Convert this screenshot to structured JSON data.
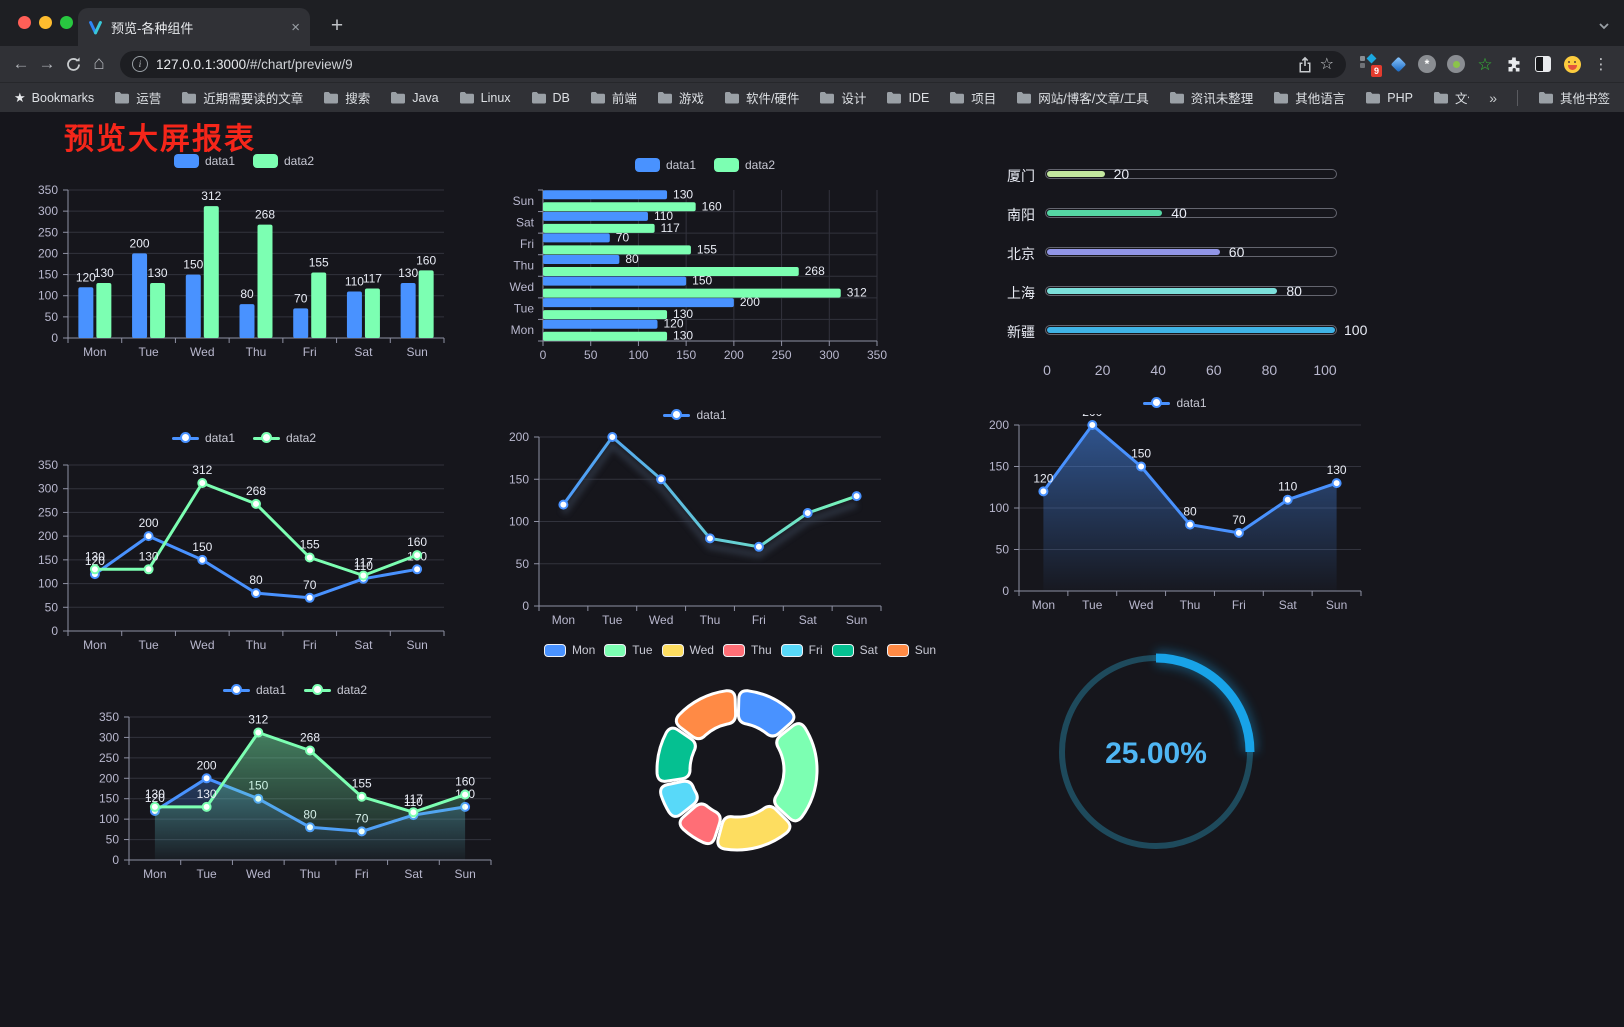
{
  "browser": {
    "tab": {
      "title": "预览-各种组件",
      "close": "×",
      "new_tab": "+"
    },
    "url": {
      "host": "127.0.0.1:3000",
      "path": "/#/chart/preview/9"
    },
    "bookmarks": {
      "bookmarks_label": "Bookmarks",
      "folders": [
        "运营",
        "近期需要读的文章",
        "搜索",
        "Java",
        "Linux",
        "DB",
        "前端",
        "游戏",
        "软件/硬件",
        "设计",
        "IDE",
        "项目",
        "网站/博客/文章/工具",
        "资讯未整理",
        "其他语言",
        "PHP",
        "文件服务器"
      ],
      "overflow": "»",
      "other_bookmarks": "其他书签"
    },
    "extensions_badge": "9"
  },
  "page": {
    "title": "预览大屏报表"
  },
  "colors": {
    "background": "#16161c",
    "series_blue": "#4992ff",
    "series_green": "#7cffb2",
    "axis_line": "#8f91a3",
    "grid_line": "#32333d",
    "tick_text": "#b9b8ce",
    "value_label": "#e9ecf5",
    "title_red": "#f5261a"
  },
  "chart_data": [
    {
      "id": "bar-grouped",
      "type": "bar",
      "categories": [
        "Mon",
        "Tue",
        "Wed",
        "Thu",
        "Fri",
        "Sat",
        "Sun"
      ],
      "series": [
        {
          "name": "data1",
          "color": "#4992ff",
          "values": [
            120,
            200,
            150,
            80,
            70,
            110,
            130
          ]
        },
        {
          "name": "data2",
          "color": "#7cffb2",
          "values": [
            130,
            130,
            312,
            268,
            155,
            117,
            160
          ]
        }
      ],
      "ylim": [
        0,
        350
      ],
      "ytick": 50
    },
    {
      "id": "bar-horizontal",
      "type": "bar-horizontal",
      "categories": [
        "Mon",
        "Tue",
        "Wed",
        "Thu",
        "Fri",
        "Sat",
        "Sun"
      ],
      "series": [
        {
          "name": "data1",
          "color": "#4992ff",
          "values": [
            120,
            200,
            150,
            80,
            70,
            110,
            130
          ]
        },
        {
          "name": "data2",
          "color": "#7cffb2",
          "values": [
            130,
            130,
            312,
            268,
            155,
            117,
            160
          ]
        }
      ],
      "xlim": [
        0,
        350
      ],
      "xtick": 50
    },
    {
      "id": "city-progress",
      "type": "progress",
      "rows": [
        {
          "label": "厦门",
          "value": 20,
          "color": "#c3e79f"
        },
        {
          "label": "南阳",
          "value": 40,
          "color": "#55d6a4"
        },
        {
          "label": "北京",
          "value": 60,
          "color": "#9195e6"
        },
        {
          "label": "上海",
          "value": 80,
          "color": "#7ce0db"
        },
        {
          "label": "新疆",
          "value": 100,
          "color": "#3fb3e6"
        }
      ],
      "xticks": [
        0,
        20,
        40,
        60,
        80,
        100
      ],
      "xlim": [
        0,
        100
      ]
    },
    {
      "id": "line-two",
      "type": "line",
      "categories": [
        "Mon",
        "Tue",
        "Wed",
        "Thu",
        "Fri",
        "Sat",
        "Sun"
      ],
      "series": [
        {
          "name": "data1",
          "color": "#4992ff",
          "values": [
            120,
            200,
            150,
            80,
            70,
            110,
            130
          ],
          "labels": true
        },
        {
          "name": "data2",
          "color": "#7cffb2",
          "values": [
            130,
            130,
            312,
            268,
            155,
            117,
            160
          ],
          "labels": true
        }
      ],
      "ylim": [
        0,
        350
      ],
      "ytick": 50
    },
    {
      "id": "line-gradient",
      "type": "line",
      "categories": [
        "Mon",
        "Tue",
        "Wed",
        "Thu",
        "Fri",
        "Sat",
        "Sun"
      ],
      "series": [
        {
          "name": "data1",
          "color": "#4992ff",
          "color_end": "#7cffb2",
          "gradient": true,
          "shadow": true,
          "values": [
            120,
            200,
            150,
            80,
            70,
            110,
            130
          ],
          "labels": false
        }
      ],
      "ylim": [
        0,
        200
      ],
      "ytick": 50
    },
    {
      "id": "area-blue",
      "type": "area",
      "categories": [
        "Mon",
        "Tue",
        "Wed",
        "Thu",
        "Fri",
        "Sat",
        "Sun"
      ],
      "series": [
        {
          "name": "data1",
          "color": "#4992ff",
          "values": [
            120,
            200,
            150,
            80,
            70,
            110,
            130
          ],
          "labels": true,
          "area": true
        }
      ],
      "ylim": [
        0,
        200
      ],
      "ytick": 50
    },
    {
      "id": "area-double",
      "type": "area",
      "categories": [
        "Mon",
        "Tue",
        "Wed",
        "Thu",
        "Fri",
        "Sat",
        "Sun"
      ],
      "series": [
        {
          "name": "data1",
          "color": "#4992ff",
          "values": [
            120,
            200,
            150,
            80,
            70,
            110,
            130
          ],
          "labels": true,
          "area": true
        },
        {
          "name": "data2",
          "color": "#7cffb2",
          "values": [
            130,
            130,
            312,
            268,
            155,
            117,
            160
          ],
          "labels": true,
          "area": true
        }
      ],
      "ylim": [
        0,
        350
      ],
      "ytick": 50
    },
    {
      "id": "donut-week",
      "type": "pie",
      "items": [
        {
          "label": "Mon",
          "value": 120,
          "color": "#4992ff"
        },
        {
          "label": "Tue",
          "value": 200,
          "color": "#7cffb2"
        },
        {
          "label": "Wed",
          "value": 150,
          "color": "#fddd60"
        },
        {
          "label": "Thu",
          "value": 80,
          "color": "#ff6e76"
        },
        {
          "label": "Fri",
          "value": 70,
          "color": "#58d9f9"
        },
        {
          "label": "Sat",
          "value": 110,
          "color": "#05c091"
        },
        {
          "label": "Sun",
          "value": 130,
          "color": "#ff8a45"
        }
      ]
    },
    {
      "id": "gauge-percent",
      "type": "gauge",
      "value": 25,
      "label": "25.00%",
      "color": "#18a3e8",
      "track_color": "#1e4a5c",
      "text_color": "#4fb6f4"
    }
  ]
}
